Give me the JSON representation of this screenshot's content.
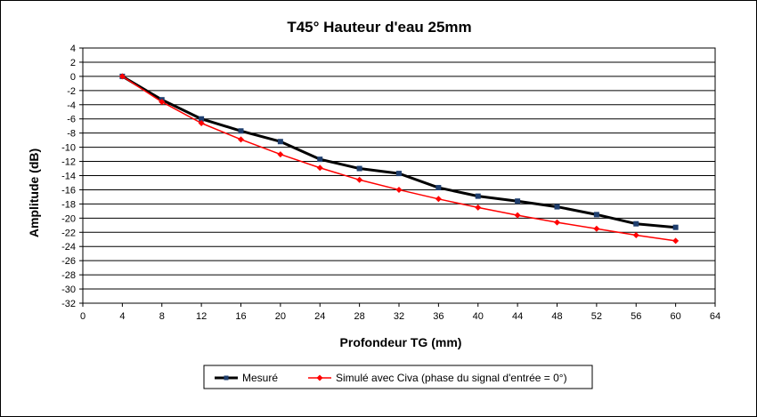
{
  "chart_data": {
    "type": "line",
    "title": "T45°  Hauteur d'eau 25mm",
    "xlabel": "Profondeur TG (mm)",
    "ylabel": "Amplitude (dB)",
    "xlim": [
      0,
      64
    ],
    "ylim": [
      -32,
      4
    ],
    "x_ticks": [
      0,
      4,
      8,
      12,
      16,
      20,
      24,
      28,
      32,
      36,
      40,
      44,
      48,
      52,
      56,
      60,
      64
    ],
    "y_ticks": [
      4,
      2,
      0,
      -2,
      -4,
      -6,
      -8,
      -10,
      -12,
      -14,
      -16,
      -18,
      -20,
      -22,
      -24,
      -26,
      -28,
      -30,
      -32
    ],
    "grid": "horizontal",
    "legend_position": "bottom",
    "series": [
      {
        "name": "Mesuré",
        "color": "#000000",
        "marker": "square",
        "x": [
          4,
          8,
          12,
          16,
          20,
          24,
          28,
          32,
          36,
          40,
          44,
          48,
          52,
          56,
          60
        ],
        "y": [
          0,
          -3.3,
          -6.0,
          -7.7,
          -9.2,
          -11.7,
          -13.0,
          -13.7,
          -15.7,
          -16.9,
          -17.6,
          -18.4,
          -19.5,
          -20.8,
          -21.3
        ]
      },
      {
        "name": "Simulé avec Civa (phase du signal d'entrée = 0°)",
        "color": "#ff0000",
        "marker": "diamond",
        "x": [
          4,
          8,
          12,
          16,
          20,
          24,
          28,
          32,
          36,
          40,
          44,
          48,
          52,
          56,
          60
        ],
        "y": [
          0,
          -3.6,
          -6.6,
          -8.9,
          -11.0,
          -12.9,
          -14.6,
          -16.0,
          -17.3,
          -18.5,
          -19.6,
          -20.6,
          -21.5,
          -22.4,
          -23.2
        ]
      }
    ]
  }
}
